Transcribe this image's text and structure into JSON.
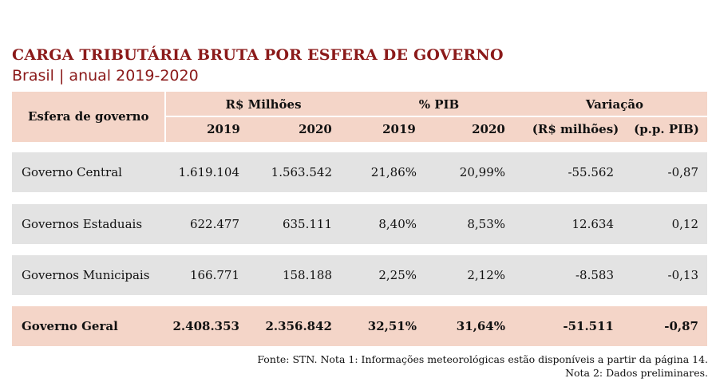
{
  "title": "CARGA TRIBUTÁRIA BRUTA POR ESFERA DE GOVERNO",
  "subtitle": "Brasil | anual 2019-2020",
  "header": {
    "esfera": "Esfera de governo",
    "group_rs": "R$ Milhões",
    "group_pib": "% PIB",
    "group_var": "Variação",
    "y2019a": "2019",
    "y2020a": "2020",
    "y2019b": "2019",
    "y2020b": "2020",
    "var_rs": "(R$ milhões)",
    "var_pp": "(p.p. PIB)"
  },
  "rows": [
    {
      "name": "Governo Central",
      "rs2019": "1.619.104",
      "rs2020": "1.563.542",
      "pib2019": "21,86%",
      "pib2020": "20,99%",
      "var_rs": "-55.562",
      "var_pp": "-0,87"
    },
    {
      "name": "Governos Estaduais",
      "rs2019": "622.477",
      "rs2020": "635.111",
      "pib2019": "8,40%",
      "pib2020": "8,53%",
      "var_rs": "12.634",
      "var_pp": "0,12"
    },
    {
      "name": "Governos Municipais",
      "rs2019": "166.771",
      "rs2020": "158.188",
      "pib2019": "2,25%",
      "pib2020": "2,12%",
      "var_rs": "-8.583",
      "var_pp": "-0,13"
    },
    {
      "name": "Governo Geral",
      "rs2019": "2.408.353",
      "rs2020": "2.356.842",
      "pib2019": "32,51%",
      "pib2020": "31,64%",
      "var_rs": "-51.511",
      "var_pp": "-0,87"
    }
  ],
  "notes": {
    "line1": "Fonte: STN. Nota 1: Informações meteorológicas estão disponíveis a partir da página 14.",
    "line2": "Nota 2: Dados preliminares."
  },
  "colors": {
    "title": "#8b1a1a",
    "header_bg": "#f4d5c8",
    "row_bg": "#e3e3e3"
  }
}
